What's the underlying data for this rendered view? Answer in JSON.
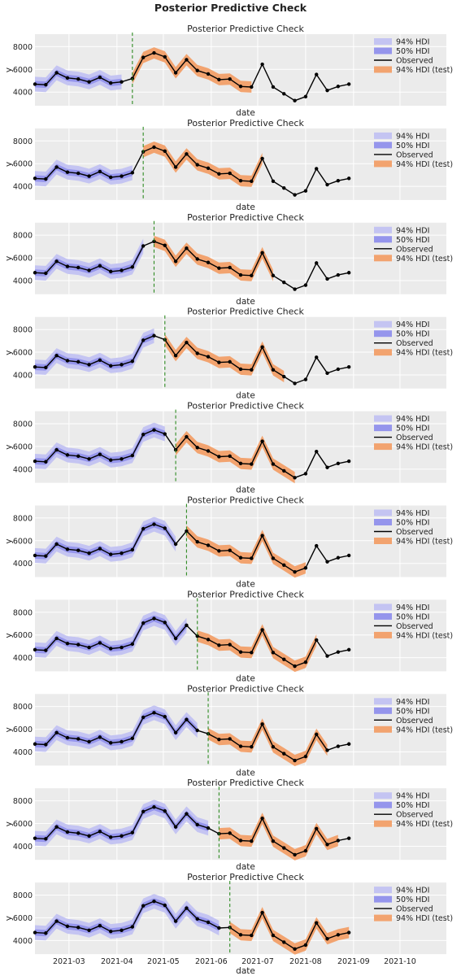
{
  "figure": {
    "title": "Posterior Predictive Check"
  },
  "colors": {
    "panel_bg": "#ebebeb",
    "hdi94": "#c4c4f2",
    "hdi50": "#9595ec",
    "observed": "#000000",
    "test94": "#f2a36f",
    "cutoff": "#2e8b22"
  },
  "chart_data": {
    "type": "line",
    "panel_count": 10,
    "panel_title": "Posterior Predictive Check",
    "xlabel": "date",
    "ylabel": "y",
    "yticks": [
      4000,
      6000,
      8000
    ],
    "ylim": [
      2800,
      9100
    ],
    "xlim": [
      "2021-02-07",
      "2021-10-31"
    ],
    "xticks": [
      "2021-03",
      "2021-04",
      "2021-05",
      "2021-06",
      "2021-07",
      "2021-08",
      "2021-09",
      "2021-10"
    ],
    "grid": true,
    "legend": {
      "placement": "right",
      "entries": [
        "94% HDI",
        "50% HDI",
        "Observed",
        "94% HDI (test)"
      ]
    },
    "observed": {
      "name": "Observed",
      "x": [
        "2021-02-07",
        "2021-02-14",
        "2021-02-21",
        "2021-02-28",
        "2021-03-07",
        "2021-03-14",
        "2021-03-21",
        "2021-03-28",
        "2021-04-04",
        "2021-04-11",
        "2021-04-18",
        "2021-04-25",
        "2021-05-02",
        "2021-05-09",
        "2021-05-16",
        "2021-05-23",
        "2021-05-30",
        "2021-06-06",
        "2021-06-13",
        "2021-06-20",
        "2021-06-27",
        "2021-07-04",
        "2021-07-11",
        "2021-07-18",
        "2021-07-25",
        "2021-08-01",
        "2021-08-08",
        "2021-08-15",
        "2021-08-22",
        "2021-08-29"
      ],
      "y": [
        4700,
        4650,
        5700,
        5250,
        5150,
        4900,
        5300,
        4800,
        4900,
        5200,
        7050,
        7450,
        7100,
        5700,
        6850,
        5900,
        5600,
        5100,
        5150,
        4500,
        4450,
        6450,
        4450,
        3850,
        3250,
        3600,
        5550,
        4150,
        4500,
        4700
      ]
    },
    "cutoffs": [
      "2021-04-11",
      "2021-04-18",
      "2021-04-25",
      "2021-05-02",
      "2021-05-09",
      "2021-05-16",
      "2021-05-23",
      "2021-05-30",
      "2021-06-06",
      "2021-06-13"
    ],
    "test_horizon_weeks": 12,
    "hdi94_halfwidth": 650,
    "hdi50_halfwidth": 280,
    "test94_halfwidth": 500
  }
}
